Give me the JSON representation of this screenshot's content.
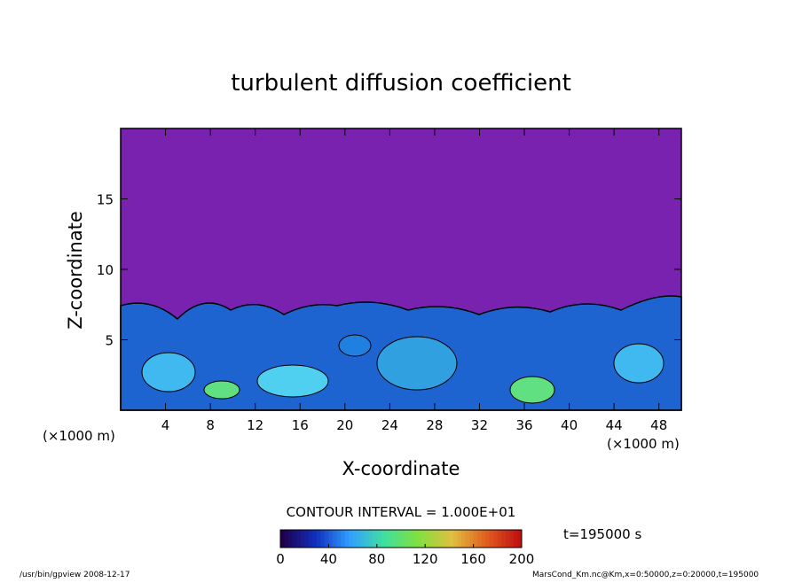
{
  "chart_data": {
    "type": "contour",
    "title": "turbulent diffusion coefficient",
    "x_label": "X-coordinate",
    "y_label": "Z-coordinate",
    "x_unit": "(×1000 m)",
    "y_unit": "(×1000 m)",
    "xlim": [
      0,
      50
    ],
    "xticks": [
      4,
      8,
      12,
      16,
      20,
      24,
      28,
      32,
      36,
      40,
      44,
      48
    ],
    "ylim": [
      0,
      20
    ],
    "yticks": [
      5,
      10,
      15
    ],
    "contour_interval": "CONTOUR INTERVAL = 1.000E+01",
    "colorbar": {
      "lim": [
        0,
        200
      ],
      "ticks": [
        0,
        40,
        80,
        120,
        160,
        200
      ],
      "colors": [
        "#20004a",
        "#1030c0",
        "#30a0ff",
        "#40e0a0",
        "#80e040",
        "#e0c040",
        "#e06020",
        "#c01010"
      ]
    },
    "time": "t=195000 s"
  },
  "footer": {
    "left": "/usr/bin/gpview  2008-12-17",
    "right": "MarsCond_Km.nc@Km,x=0:50000,z=0:20000,t=195000"
  }
}
